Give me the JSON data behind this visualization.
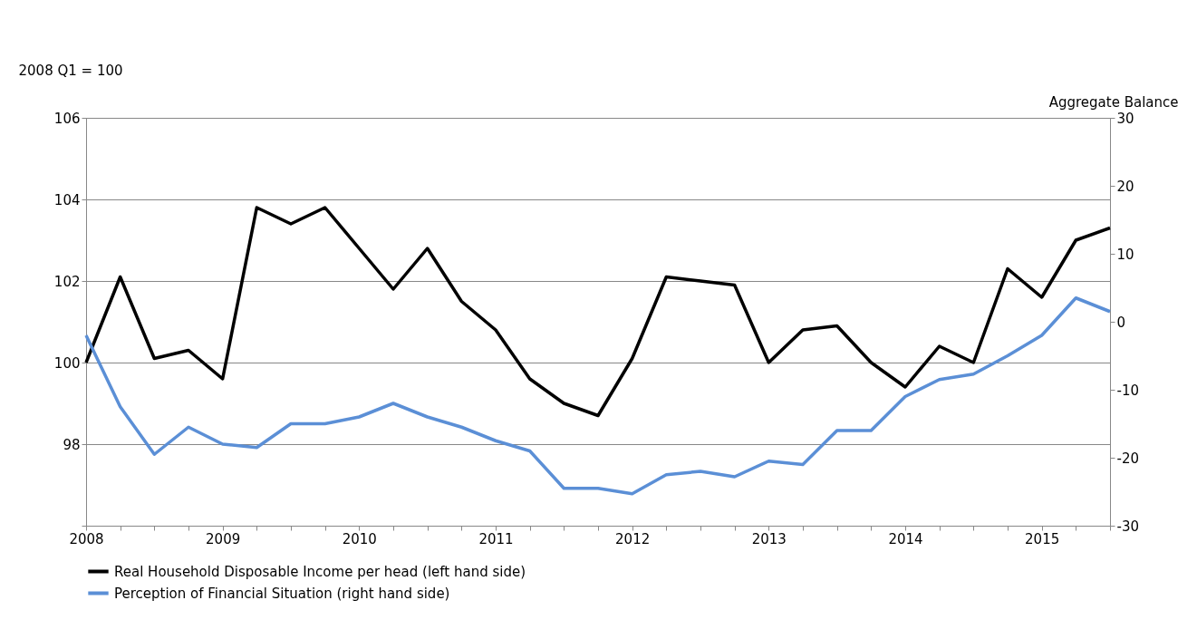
{
  "chart_data": {
    "type": "line",
    "ylabel": "2008 Q1 = 100",
    "y2label": "Aggregate Balance",
    "x": [
      2008,
      2008.25,
      2008.5,
      2008.75,
      2009,
      2009.25,
      2009.5,
      2009.75,
      2010,
      2010.25,
      2010.5,
      2010.75,
      2011,
      2011.25,
      2011.5,
      2011.75,
      2012,
      2012.25,
      2012.5,
      2012.75,
      2013,
      2013.25,
      2013.5,
      2013.75,
      2014,
      2014.25,
      2014.5,
      2014.75,
      2015,
      2015.25,
      2015.5
    ],
    "series": [
      {
        "name": "Real Household Disposable Income per head (left hand side)",
        "color": "#000000",
        "values": [
          100.0,
          102.1,
          100.1,
          100.3,
          99.6,
          103.8,
          103.4,
          103.8,
          102.8,
          101.8,
          102.8,
          101.5,
          100.8,
          99.6,
          99.0,
          98.7,
          100.1,
          102.1,
          102.0,
          101.9,
          100.0,
          100.8,
          100.9,
          100.0,
          99.4,
          100.4,
          100.0,
          102.3,
          101.6,
          103.0,
          103.3
        ]
      },
      {
        "name": "Perception of Financial Situation (right hand side)",
        "color": "#5b8fd6",
        "axis": "y2",
        "values": [
          -2,
          -12.5,
          -19.5,
          -15.5,
          -18,
          -18.5,
          -15,
          -15,
          -14,
          -12,
          -14,
          -15.5,
          -17.5,
          -19,
          -24.5,
          -24.5,
          -25.3,
          -22.5,
          -22,
          -22.8,
          -20.5,
          -21,
          -16,
          -16,
          -11,
          -8.5,
          -7.7,
          -5,
          -2,
          3.5,
          1.5
        ]
      }
    ],
    "xlim": [
      2008,
      2015.5
    ],
    "xticks": [
      2008,
      {
        "value": 2008.25,
        "label": null
      },
      {
        "value": 2008.5,
        "label": null
      },
      {
        "value": 2008.75,
        "label": null
      },
      2009,
      {
        "value": 2009.25,
        "label": null
      },
      {
        "value": 2009.5,
        "label": null
      },
      {
        "value": 2009.75,
        "label": null
      },
      2010,
      {
        "value": 2010.25,
        "label": null
      },
      {
        "value": 2010.5,
        "label": null
      },
      {
        "value": 2010.75,
        "label": null
      },
      2011,
      {
        "value": 2011.25,
        "label": null
      },
      {
        "value": 2011.5,
        "label": null
      },
      {
        "value": 2011.75,
        "label": null
      },
      2012,
      {
        "value": 2012.25,
        "label": null
      },
      {
        "value": 2012.5,
        "label": null
      },
      {
        "value": 2012.75,
        "label": null
      },
      2013,
      {
        "value": 2013.25,
        "label": null
      },
      {
        "value": 2013.5,
        "label": null
      },
      {
        "value": 2013.75,
        "label": null
      },
      2014,
      {
        "value": 2014.25,
        "label": null
      },
      {
        "value": 2014.5,
        "label": null
      },
      {
        "value": 2014.75,
        "label": null
      },
      2015,
      {
        "value": 2015.25,
        "label": null
      },
      {
        "value": 2015.5,
        "label": null
      }
    ],
    "ylim": [
      96,
      106
    ],
    "yticks": [
      {
        "value": 96,
        "label": null
      },
      98,
      100,
      102,
      104,
      106
    ],
    "y2lim": [
      -30,
      30
    ],
    "y2ticks": [
      -30,
      -20,
      -10,
      0,
      10,
      20,
      30
    ],
    "grid": "y",
    "legend": "bottom",
    "line_style": "solid",
    "marker": "none"
  }
}
